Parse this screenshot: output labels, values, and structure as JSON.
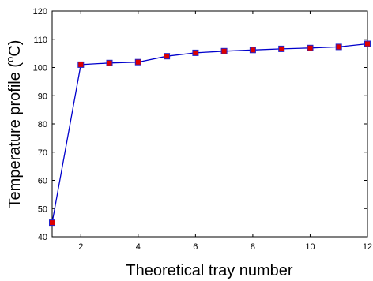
{
  "chart_data": {
    "type": "line",
    "title": "",
    "xlabel": "Theoretical tray number",
    "ylabel": {
      "prefix": "Temperature profile (",
      "superscript": "o",
      "suffix": "C)"
    },
    "xlim": [
      1,
      12
    ],
    "ylim": [
      40,
      120
    ],
    "x_ticks": [
      2,
      4,
      6,
      8,
      10,
      12
    ],
    "y_ticks": [
      40,
      50,
      60,
      70,
      80,
      90,
      100,
      110,
      120
    ],
    "grid": false,
    "legend": "none",
    "series": [
      {
        "x": [
          1,
          2,
          3,
          4,
          5,
          6,
          7,
          8,
          9,
          10,
          11,
          12
        ],
        "values": [
          45,
          101,
          101.6,
          101.9,
          104,
          105.2,
          105.8,
          106.2,
          106.6,
          106.9,
          107.3,
          108.4
        ],
        "line_color": "#0000cc",
        "marker_fill": "#dd0000",
        "marker_edge": "#2222cc",
        "marker": "square"
      }
    ]
  }
}
